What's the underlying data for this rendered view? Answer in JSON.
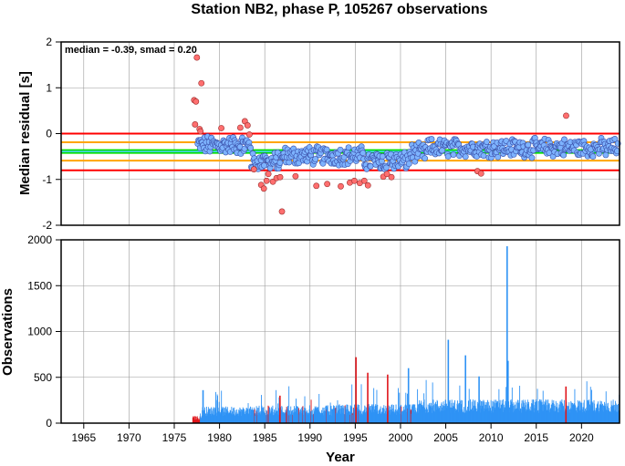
{
  "colors": {
    "bound_line": "#ff0000",
    "sigma_line": "#ffa500",
    "median_line": "#00dd00",
    "median_line_inner": "#4fd3ff",
    "point_in": "#7db3ff",
    "point_out": "#ff6f6f",
    "bar_in": "#2f93f5",
    "bar_out": "#e0161b",
    "grid": "#9a9a9a"
  },
  "chart_data": [
    {
      "type": "scatter",
      "title": "Station NB2, phase P, 105267 observations",
      "ylabel": "Median residual [s]",
      "stat_text": "median = -0.39, smad = 0.20",
      "xlim": [
        1962.5,
        2024.2
      ],
      "ylim": [
        -2,
        2
      ],
      "yticks": [
        "2",
        "1",
        "0",
        "-1",
        "-2"
      ],
      "ytick_values": [
        2,
        1,
        0,
        -1,
        -2
      ],
      "grid": true,
      "hlines": [
        {
          "y": 0.0,
          "role": "upper_bound"
        },
        {
          "y": -0.8,
          "role": "lower_bound"
        },
        {
          "y": -0.19,
          "role": "upper_sigma"
        },
        {
          "y": -0.59,
          "role": "lower_sigma"
        },
        {
          "y": -0.39,
          "role": "median"
        }
      ],
      "outliers": [
        [
          1977.2,
          0.73
        ],
        [
          1977.3,
          0.2
        ],
        [
          1977.4,
          0.7
        ],
        [
          1977.5,
          1.66
        ],
        [
          1977.8,
          0.1
        ],
        [
          1978.0,
          1.1
        ],
        [
          1977.9,
          0.05
        ],
        [
          1980.2,
          0.12
        ],
        [
          1982.3,
          0.13
        ],
        [
          1982.8,
          0.27
        ],
        [
          1983.1,
          0.18
        ],
        [
          1983.3,
          -0.02
        ],
        [
          1983.8,
          -0.78
        ],
        [
          1984.6,
          -1.12
        ],
        [
          1984.9,
          -1.2
        ],
        [
          1985.2,
          -1.03
        ],
        [
          1985.4,
          -0.88
        ],
        [
          1985.9,
          -1.05
        ],
        [
          1986.3,
          -0.97
        ],
        [
          1986.7,
          -0.95
        ],
        [
          1986.9,
          -1.7
        ],
        [
          1988.4,
          -0.93
        ],
        [
          1990.7,
          -1.14
        ],
        [
          1991.9,
          -1.1
        ],
        [
          1993.4,
          -1.15
        ],
        [
          1994.4,
          -1.07
        ],
        [
          1994.9,
          -1.03
        ],
        [
          1995.5,
          -1.08
        ],
        [
          1996.0,
          -1.03
        ],
        [
          1996.4,
          -1.13
        ],
        [
          1998.1,
          -0.94
        ],
        [
          1998.5,
          -0.88
        ],
        [
          1999.0,
          -0.95
        ],
        [
          2008.5,
          -0.82
        ],
        [
          2008.9,
          -0.87
        ],
        [
          2018.3,
          0.39
        ]
      ],
      "inlier_pattern": "dense monthly medians 1977.5-2024, around -0.35 to -0.6 until 2000, then -0.2 to -0.4"
    },
    {
      "type": "bar",
      "xlabel": "Year",
      "ylabel": "Observations",
      "xlim": [
        1962.5,
        2024.2
      ],
      "ylim": [
        0,
        2000
      ],
      "yticks": [
        "2000",
        "1500",
        "1000",
        "500",
        "0"
      ],
      "ytick_values": [
        2000,
        1500,
        1000,
        500,
        0
      ],
      "xticks": [
        "1965",
        "1970",
        "1975",
        "1980",
        "1985",
        "1990",
        "1995",
        "2000",
        "2005",
        "2010",
        "2015",
        "2020"
      ],
      "xtick_values": [
        1965,
        1970,
        1975,
        1980,
        1985,
        1990,
        1995,
        2000,
        2005,
        2010,
        2015,
        2020
      ],
      "grid": true,
      "peaks": [
        {
          "x": 1978.1,
          "value": 360,
          "outlier": false
        },
        {
          "x": 1986.6,
          "value": 300,
          "outlier": true
        },
        {
          "x": 1995.0,
          "value": 720,
          "outlier": true
        },
        {
          "x": 1996.3,
          "value": 550,
          "outlier": true
        },
        {
          "x": 1998.5,
          "value": 530,
          "outlier": true
        },
        {
          "x": 2000.8,
          "value": 600,
          "outlier": false
        },
        {
          "x": 2005.2,
          "value": 910,
          "outlier": false
        },
        {
          "x": 2007.1,
          "value": 740,
          "outlier": false
        },
        {
          "x": 2008.6,
          "value": 510,
          "outlier": false
        },
        {
          "x": 2011.7,
          "value": 1930,
          "outlier": false
        },
        {
          "x": 2011.8,
          "value": 680,
          "outlier": false
        },
        {
          "x": 2018.2,
          "value": 400,
          "outlier": true
        }
      ],
      "baseline_levels": [
        {
          "from": 1977.0,
          "to": 1978.0,
          "value": 60
        },
        {
          "from": 1978.0,
          "to": 1984.0,
          "value": 140
        },
        {
          "from": 1984.0,
          "to": 1993.0,
          "value": 150
        },
        {
          "from": 1993.0,
          "to": 2002.0,
          "value": 160
        },
        {
          "from": 2002.0,
          "to": 2024.2,
          "value": 200
        }
      ]
    }
  ]
}
